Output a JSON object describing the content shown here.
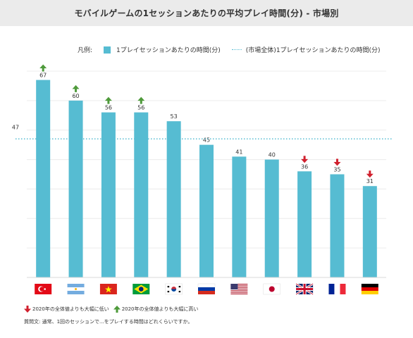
{
  "title": "モバイルゲームの1セッションあたりの平均プレイ時間(分) - 市場別",
  "legend": {
    "label": "凡例:",
    "bar_series": "1プレイセッションあたりの時間(分)",
    "line_series": "(市場全体)1プレイセッションあたりの時間(分)"
  },
  "footnotes": {
    "down": "2020年の全体値よりも大幅に低い",
    "up": "2020年の全体値よりも大幅に高い",
    "question": "質問文: 通常、1回のセッションで...をプレイする時間はどれくらいですか。"
  },
  "colors": {
    "bar": "#56bcd2",
    "up_arrow": "#4e9a3a",
    "down_arrow": "#d0202e"
  },
  "chart_data": {
    "type": "bar",
    "categories": [
      "Turkey",
      "Argentina",
      "Vietnam",
      "Brazil",
      "South Korea",
      "Russia",
      "United States",
      "Japan",
      "United Kingdom",
      "France",
      "Germany"
    ],
    "series": [
      {
        "name": "1プレイセッションあたりの時間(分)",
        "values": [
          67,
          60,
          56,
          56,
          53,
          45,
          41,
          40,
          36,
          35,
          31
        ]
      }
    ],
    "reference_line": {
      "name": "(市場全体)1プレイセッションあたりの時間(分)",
      "value": 47,
      "label": "47"
    },
    "significance": [
      "up",
      "up",
      "up",
      "up",
      "none",
      "none",
      "none",
      "none",
      "down",
      "down",
      "down"
    ],
    "ylim": [
      0,
      70
    ],
    "grid": true,
    "legend_position": "top"
  }
}
